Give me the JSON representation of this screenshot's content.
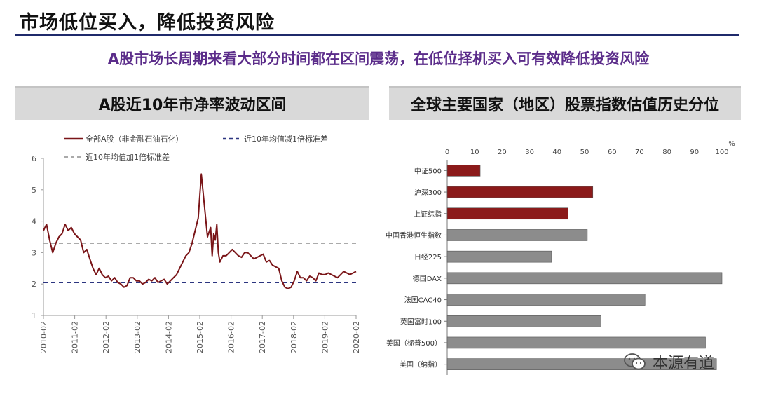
{
  "header": {
    "title": "市场低位买入，降低投资风险",
    "subtitle": "A股市场长周期来看大部分时间都在区间震荡，在低位择机买入可有效降低投资风险"
  },
  "left_panel": {
    "title": "A股近10年市净率波动区间"
  },
  "right_panel": {
    "title": "全球主要国家（地区）股票指数估值历史分位"
  },
  "watermark": {
    "text": "本源有道",
    "icon": "wechat-icon"
  },
  "colors": {
    "line": "#7a1518",
    "bar_red": "#8b1a1a",
    "bar_gray": "#8c8c8c",
    "upper_band": "#aaaaaa",
    "lower_band": "#2c3580",
    "accent": "#5b2c8a"
  },
  "chart_data": [
    {
      "type": "line",
      "ylim": [
        1,
        6
      ],
      "yticks": [
        "1",
        "2",
        "3",
        "4",
        "5",
        "6"
      ],
      "xticks": [
        "2010-02",
        "2011-02",
        "2012-02",
        "2013-02",
        "2014-02",
        "2015-02",
        "2016-02",
        "2017-02",
        "2018-02",
        "2019-02",
        "2020-02"
      ],
      "legend_placement": "top-left",
      "series": [
        {
          "name": "全部A股（非金融石油石化）",
          "style": "solid",
          "x": [
            2010.0,
            2010.1,
            2010.2,
            2010.3,
            2010.4,
            2010.5,
            2010.6,
            2010.7,
            2010.8,
            2010.9,
            2011.0,
            2011.1,
            2011.2,
            2011.3,
            2011.4,
            2011.5,
            2011.6,
            2011.7,
            2011.8,
            2011.9,
            2012.0,
            2012.1,
            2012.2,
            2012.3,
            2012.4,
            2012.5,
            2012.6,
            2012.7,
            2012.8,
            2012.9,
            2013.0,
            2013.1,
            2013.2,
            2013.3,
            2013.4,
            2013.5,
            2013.6,
            2013.7,
            2013.8,
            2013.9,
            2014.0,
            2014.1,
            2014.2,
            2014.3,
            2014.4,
            2014.5,
            2014.6,
            2014.7,
            2014.8,
            2014.9,
            2015.0,
            2015.1,
            2015.2,
            2015.3,
            2015.4,
            2015.45,
            2015.5,
            2015.55,
            2015.6,
            2015.65,
            2015.7,
            2015.8,
            2015.9,
            2016.0,
            2016.1,
            2016.2,
            2016.3,
            2016.4,
            2016.5,
            2016.6,
            2016.7,
            2016.8,
            2016.9,
            2017.0,
            2017.1,
            2017.2,
            2017.3,
            2017.4,
            2017.5,
            2017.6,
            2017.7,
            2017.8,
            2017.9,
            2018.0,
            2018.1,
            2018.2,
            2018.3,
            2018.4,
            2018.5,
            2018.6,
            2018.7,
            2018.8,
            2018.9,
            2019.0,
            2019.1,
            2019.2,
            2019.3,
            2019.4,
            2019.5,
            2019.6,
            2019.7,
            2019.8,
            2019.9,
            2020.0,
            2020.1
          ],
          "y": [
            3.7,
            3.9,
            3.4,
            3.0,
            3.3,
            3.5,
            3.6,
            3.9,
            3.7,
            3.8,
            3.6,
            3.5,
            3.4,
            3.0,
            3.1,
            2.8,
            2.5,
            2.3,
            2.5,
            2.3,
            2.2,
            2.25,
            2.1,
            2.2,
            2.05,
            2.0,
            1.9,
            1.95,
            2.2,
            2.2,
            2.1,
            2.1,
            2.0,
            2.05,
            2.15,
            2.1,
            2.2,
            2.05,
            2.1,
            2.15,
            2.0,
            2.1,
            2.2,
            2.3,
            2.5,
            2.7,
            2.9,
            3.0,
            3.3,
            3.7,
            4.1,
            5.5,
            4.5,
            3.5,
            3.8,
            2.9,
            3.6,
            3.4,
            3.9,
            3.0,
            2.7,
            2.9,
            2.9,
            3.0,
            3.1,
            3.0,
            2.9,
            2.85,
            3.0,
            3.0,
            2.9,
            2.8,
            2.85,
            2.9,
            2.95,
            2.7,
            2.75,
            2.6,
            2.55,
            2.5,
            2.1,
            1.9,
            1.85,
            1.9,
            2.1,
            2.4,
            2.2,
            2.2,
            2.1,
            2.25,
            2.2,
            2.1,
            2.35,
            2.3,
            2.3,
            2.35,
            2.3,
            2.25,
            2.2,
            2.3,
            2.4,
            2.35,
            2.3,
            2.35,
            2.4
          ]
        },
        {
          "name": "近10年均值减1倍标准差",
          "style": "dashed",
          "value": 2.05
        },
        {
          "name": "近10年均值加1倍标准差",
          "style": "dashed",
          "value": 3.3
        }
      ]
    },
    {
      "type": "bar",
      "orientation": "horizontal",
      "xlim": [
        0,
        100
      ],
      "xticks": [
        "0",
        "10",
        "20",
        "30",
        "40",
        "50",
        "60",
        "70",
        "80",
        "90",
        "100"
      ],
      "unit": "%",
      "categories": [
        "中证500",
        "沪深300",
        "上证综指",
        "中国香港恒生指数",
        "日经225",
        "德国DAX",
        "法国CAC40",
        "英国富时100",
        "美国（标普500）",
        "美国（纳指）"
      ],
      "values": [
        12,
        53,
        44,
        51,
        38,
        100,
        72,
        56,
        94,
        98
      ],
      "highlight": [
        true,
        true,
        true,
        false,
        false,
        false,
        false,
        false,
        false,
        false
      ]
    }
  ]
}
